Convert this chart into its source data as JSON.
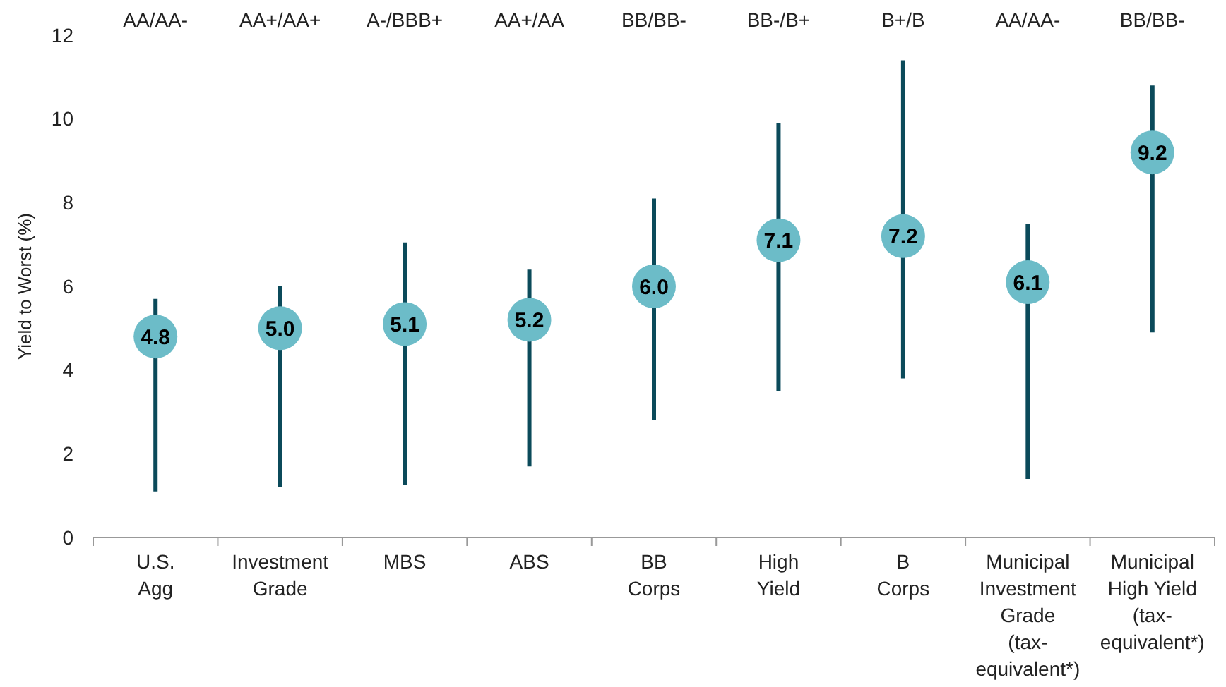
{
  "chart_data": {
    "type": "scatter",
    "ylabel": "Yield to Worst (%)",
    "categories": [
      "U.S.\nAgg",
      "Investment\nGrade",
      "MBS",
      "ABS",
      "BB\nCorps",
      "High\nYield",
      "B\nCorps",
      "Municipal\nInvestment\nGrade\n(tax-\nequivalent*)",
      "Municipal\nHigh Yield\n(tax-\nequivalent*)"
    ],
    "series": [
      {
        "color": "#6cbcc8",
        "values": [
          4.8,
          5.0,
          5.1,
          5.2,
          6.0,
          7.1,
          7.2,
          6.1,
          9.2
        ],
        "value_labels": [
          "4.8",
          "5.0",
          "5.1",
          "5.2",
          "6.0",
          "7.1",
          "7.2",
          "6.1",
          "9.2"
        ],
        "errors": [
          [
            1.1,
            5.7
          ],
          [
            1.2,
            6.0
          ],
          [
            1.25,
            7.05
          ],
          [
            1.7,
            6.4
          ],
          [
            2.8,
            8.1
          ],
          [
            3.5,
            9.9
          ],
          [
            3.8,
            11.4
          ],
          [
            1.4,
            7.5
          ],
          [
            4.9,
            10.8
          ]
        ]
      }
    ],
    "annotations": [
      "AA/AA-",
      "AA+/AA+",
      "A-/BBB+",
      "AA+/AA",
      "BB/BB-",
      "BB-/B+",
      "B+/B",
      "AA/AA-",
      "BB/BB-"
    ],
    "ylim": [
      0,
      12
    ],
    "yticks": [
      0,
      2,
      4,
      6,
      8,
      10,
      12
    ],
    "marker": "circle"
  }
}
